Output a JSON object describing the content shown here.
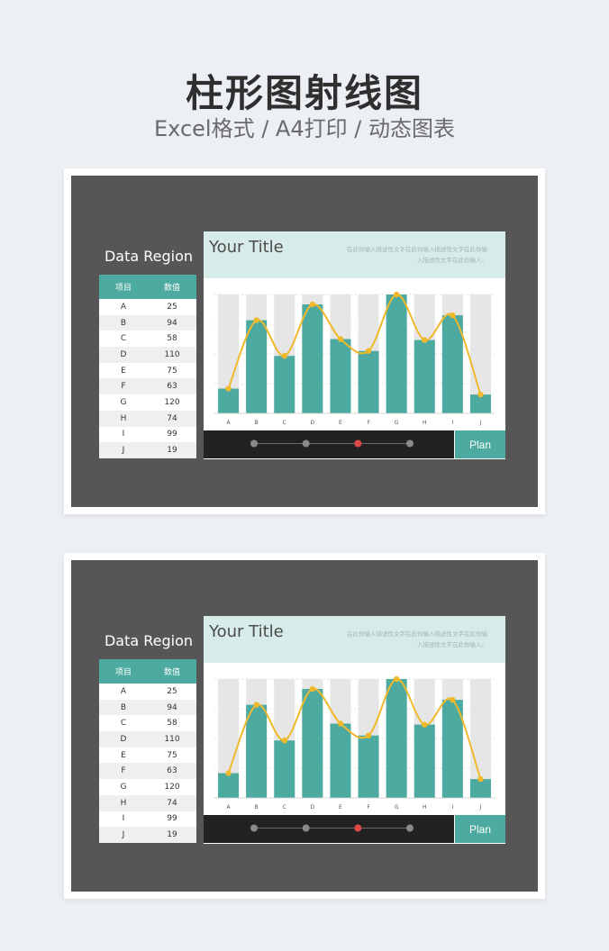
{
  "page": {
    "title": "柱形图射线图",
    "subtitle": "Excel格式 / A4打印 / 动态图表"
  },
  "colors": {
    "bar": "#4daaa0",
    "bar_bg": "#e6e6e6",
    "line": "#f0b92c",
    "slider_active": "#e04848",
    "slider_dot": "#8a8a8a"
  },
  "cards": [
    {
      "region_label": "Data Region",
      "table_headers": [
        "项目",
        "数值"
      ],
      "chart_title": "Your Title",
      "chart_desc": "在此你输入描述性文字在此你输入描述性文字在此你输入描述性文字在此你输入。",
      "plan_label": "Plan"
    },
    {
      "region_label": "Data Region",
      "table_headers": [
        "项目",
        "数值"
      ],
      "chart_title": "Your Title",
      "chart_desc": "在此你输入描述性文字在此你输入描述性文字在此你输入描述性文字在此你输入。",
      "plan_label": "Plan"
    }
  ],
  "slider": {
    "steps": 4,
    "active_index": 2
  },
  "chart_data": [
    {
      "type": "bar",
      "categories": [
        "A",
        "B",
        "C",
        "D",
        "E",
        "F",
        "G",
        "H",
        "I",
        "J"
      ],
      "values": [
        25,
        94,
        58,
        110,
        75,
        63,
        120,
        74,
        99,
        19
      ],
      "ylim": [
        0,
        120
      ],
      "overlay_line": true,
      "grid": true
    },
    {
      "type": "bar",
      "categories": [
        "A",
        "B",
        "C",
        "D",
        "E",
        "F",
        "G",
        "H",
        "I",
        "J"
      ],
      "values": [
        25,
        94,
        58,
        110,
        75,
        63,
        120,
        74,
        99,
        19
      ],
      "ylim": [
        0,
        120
      ],
      "overlay_line": true,
      "grid": true
    }
  ]
}
